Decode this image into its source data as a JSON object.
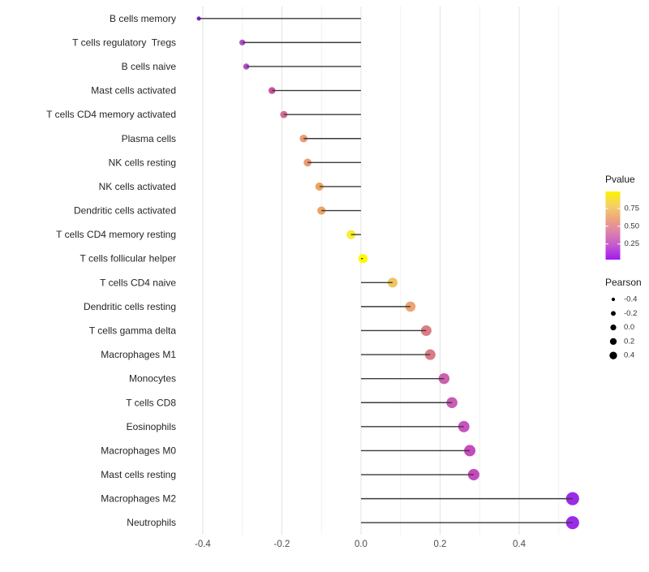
{
  "chart_data": {
    "type": "lollipop",
    "title": "",
    "xlabel": "",
    "ylabel": "",
    "xlim": [
      -0.445,
      0.56
    ],
    "x_ticks": [
      -0.4,
      -0.2,
      0.0,
      0.2,
      0.4
    ],
    "x_tick_labels": [
      "-0.4",
      "-0.2",
      "0.0",
      "0.2",
      "0.4"
    ],
    "x_minor_gridlines": [
      -0.3,
      -0.1,
      0.1,
      0.3,
      0.5
    ],
    "grid": "vertical-only",
    "background_color": "#ffffff",
    "stem_color": "#3a3a3a",
    "major_grid_color": "#e2e2e2",
    "minor_grid_color": "#f1f1f1",
    "points": [
      {
        "label": "B cells memory",
        "pearson": -0.41,
        "color": "#7b24cf"
      },
      {
        "label": "T cells regulatory  Tregs",
        "pearson": -0.3,
        "color": "#b44fd0"
      },
      {
        "label": "B cells naive",
        "pearson": -0.29,
        "color": "#b24ecb"
      },
      {
        "label": "Mast cells activated",
        "pearson": -0.225,
        "color": "#c8539e"
      },
      {
        "label": "T cells CD4 memory activated",
        "pearson": -0.195,
        "color": "#d46a96"
      },
      {
        "label": "Plasma cells",
        "pearson": -0.145,
        "color": "#e99c72"
      },
      {
        "label": "NK cells resting",
        "pearson": -0.135,
        "color": "#e99b74"
      },
      {
        "label": "NK cells activated",
        "pearson": -0.105,
        "color": "#eda55f"
      },
      {
        "label": "Dendritic cells activated",
        "pearson": -0.1,
        "color": "#eca45f"
      },
      {
        "label": "T cells CD4 memory resting",
        "pearson": -0.025,
        "color": "#f6ee2f"
      },
      {
        "label": "T cells follicular helper",
        "pearson": 0.005,
        "color": "#fdf904"
      },
      {
        "label": "T cells CD4 naive",
        "pearson": 0.08,
        "color": "#edc65e"
      },
      {
        "label": "Dendritic cells resting",
        "pearson": 0.125,
        "color": "#eda473"
      },
      {
        "label": "T cells gamma delta",
        "pearson": 0.165,
        "color": "#db7d86"
      },
      {
        "label": "Macrophages M1",
        "pearson": 0.175,
        "color": "#da7b88"
      },
      {
        "label": "Monocytes",
        "pearson": 0.21,
        "color": "#cc61ae"
      },
      {
        "label": "T cells CD8",
        "pearson": 0.23,
        "color": "#cb5cb3"
      },
      {
        "label": "Eosinophils",
        "pearson": 0.26,
        "color": "#c553c0"
      },
      {
        "label": "Macrophages M0",
        "pearson": 0.275,
        "color": "#c44bbd"
      },
      {
        "label": "Mast cells resting",
        "pearson": 0.285,
        "color": "#c34abd"
      },
      {
        "label": "Macrophages M2",
        "pearson": 0.535,
        "color": "#9b2be8"
      },
      {
        "label": "Neutrophils",
        "pearson": 0.535,
        "color": "#9b2be8"
      }
    ],
    "legend": {
      "pvalue": {
        "title": "Pvalue",
        "tick_labels": [
          "0.75",
          "0.50",
          "0.25"
        ],
        "gradient_top_to_bottom": [
          "#fbf300",
          "#f5d263",
          "#eda57e",
          "#dd81ac",
          "#c257cf",
          "#a319f0"
        ]
      },
      "pearson": {
        "title": "Pearson",
        "entry_labels": [
          "-0.4",
          "-0.2",
          "0.0",
          "0.2",
          "0.4"
        ],
        "entry_values": [
          -0.4,
          -0.2,
          0.0,
          0.2,
          0.4
        ],
        "dot_color": "#000000"
      }
    }
  }
}
